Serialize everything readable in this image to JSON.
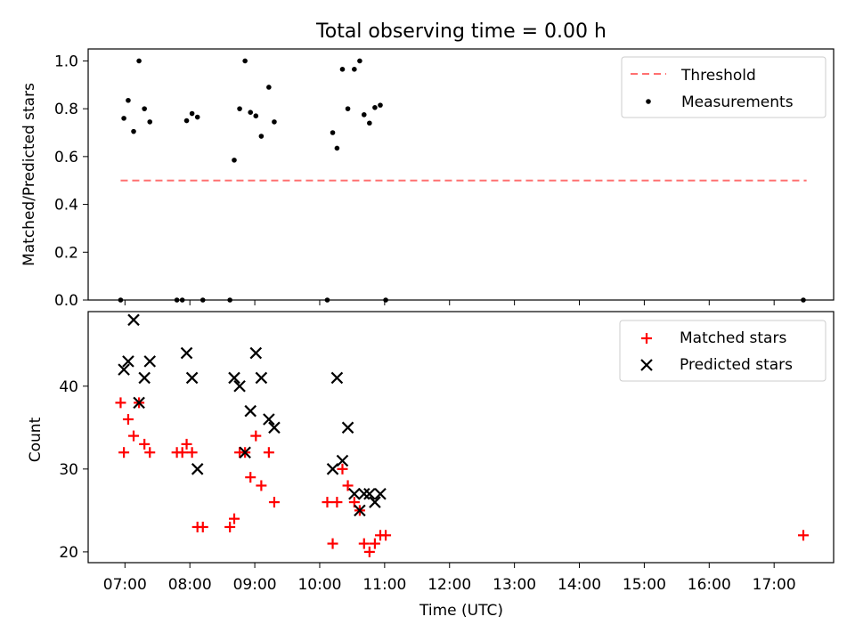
{
  "chart_data": [
    {
      "type": "scatter",
      "title": "Total observing time = 0.00 h",
      "xlabel": "",
      "ylabel": "Matched/Predicted stars",
      "xlim": [
        "06:26",
        "17:55"
      ],
      "ylim": [
        0,
        1.05
      ],
      "yticks": [
        "0.0",
        "0.2",
        "0.4",
        "0.6",
        "0.8",
        "1.0"
      ],
      "legend_position": "upper right",
      "threshold": {
        "name": "Threshold",
        "color": "#ff7070",
        "style": "dashed",
        "y": 0.5,
        "x": [
          "06:56",
          "17:30"
        ]
      },
      "measurements": {
        "name": "Measurements",
        "color": "#000000",
        "points": [
          {
            "x": "06:56",
            "y": 0.0
          },
          {
            "x": "06:59",
            "y": 0.76
          },
          {
            "x": "07:03",
            "y": 0.835
          },
          {
            "x": "07:08",
            "y": 0.705
          },
          {
            "x": "07:13",
            "y": 1.0
          },
          {
            "x": "07:18",
            "y": 0.8
          },
          {
            "x": "07:23",
            "y": 0.745
          },
          {
            "x": "07:48",
            "y": 0.0
          },
          {
            "x": "07:53",
            "y": 0.0
          },
          {
            "x": "07:57",
            "y": 0.75
          },
          {
            "x": "08:02",
            "y": 0.78
          },
          {
            "x": "08:07",
            "y": 0.765
          },
          {
            "x": "08:12",
            "y": 0.0
          },
          {
            "x": "08:37",
            "y": 0.0
          },
          {
            "x": "08:41",
            "y": 0.585
          },
          {
            "x": "08:46",
            "y": 0.8
          },
          {
            "x": "08:51",
            "y": 1.0
          },
          {
            "x": "08:56",
            "y": 0.785
          },
          {
            "x": "09:01",
            "y": 0.77
          },
          {
            "x": "09:06",
            "y": 0.685
          },
          {
            "x": "09:13",
            "y": 0.89
          },
          {
            "x": "09:18",
            "y": 0.745
          },
          {
            "x": "10:07",
            "y": 0.0
          },
          {
            "x": "10:12",
            "y": 0.7
          },
          {
            "x": "10:16",
            "y": 0.635
          },
          {
            "x": "10:21",
            "y": 0.965
          },
          {
            "x": "10:26",
            "y": 0.8
          },
          {
            "x": "10:32",
            "y": 0.965
          },
          {
            "x": "10:37",
            "y": 1.0
          },
          {
            "x": "10:41",
            "y": 0.775
          },
          {
            "x": "10:46",
            "y": 0.74
          },
          {
            "x": "10:51",
            "y": 0.805
          },
          {
            "x": "10:56",
            "y": 0.815
          },
          {
            "x": "11:01",
            "y": 0.0
          },
          {
            "x": "17:27",
            "y": 0.0
          }
        ]
      }
    },
    {
      "type": "scatter",
      "xlabel": "Time (UTC)",
      "ylabel": "Count",
      "xlim": [
        "06:26",
        "17:55"
      ],
      "ylim": [
        18.7,
        49
      ],
      "xticks": [
        "07:00",
        "08:00",
        "09:00",
        "10:00",
        "11:00",
        "12:00",
        "13:00",
        "14:00",
        "15:00",
        "16:00",
        "17:00"
      ],
      "yticks": [
        "20",
        "30",
        "40"
      ],
      "legend_position": "upper right",
      "series": [
        {
          "name": "Matched stars",
          "marker": "+",
          "color": "#ff0000",
          "points": [
            {
              "x": "06:56",
              "y": 38
            },
            {
              "x": "06:59",
              "y": 32
            },
            {
              "x": "07:03",
              "y": 36
            },
            {
              "x": "07:08",
              "y": 34
            },
            {
              "x": "07:13",
              "y": 38
            },
            {
              "x": "07:18",
              "y": 33
            },
            {
              "x": "07:23",
              "y": 32
            },
            {
              "x": "07:48",
              "y": 32
            },
            {
              "x": "07:53",
              "y": 32
            },
            {
              "x": "07:57",
              "y": 33
            },
            {
              "x": "08:02",
              "y": 32
            },
            {
              "x": "08:07",
              "y": 23
            },
            {
              "x": "08:12",
              "y": 23
            },
            {
              "x": "08:37",
              "y": 23
            },
            {
              "x": "08:41",
              "y": 24
            },
            {
              "x": "08:46",
              "y": 32
            },
            {
              "x": "08:51",
              "y": 32
            },
            {
              "x": "08:56",
              "y": 29
            },
            {
              "x": "09:01",
              "y": 34
            },
            {
              "x": "09:06",
              "y": 28
            },
            {
              "x": "09:13",
              "y": 32
            },
            {
              "x": "09:18",
              "y": 26
            },
            {
              "x": "10:07",
              "y": 26
            },
            {
              "x": "10:12",
              "y": 21
            },
            {
              "x": "10:16",
              "y": 26
            },
            {
              "x": "10:21",
              "y": 30
            },
            {
              "x": "10:26",
              "y": 28
            },
            {
              "x": "10:32",
              "y": 26
            },
            {
              "x": "10:37",
              "y": 25
            },
            {
              "x": "10:41",
              "y": 21
            },
            {
              "x": "10:46",
              "y": 20
            },
            {
              "x": "10:51",
              "y": 21
            },
            {
              "x": "10:56",
              "y": 22
            },
            {
              "x": "11:01",
              "y": 22
            },
            {
              "x": "17:27",
              "y": 22
            }
          ]
        },
        {
          "name": "Predicted stars",
          "marker": "x",
          "color": "#000000",
          "points": [
            {
              "x": "06:59",
              "y": 42
            },
            {
              "x": "07:03",
              "y": 43
            },
            {
              "x": "07:08",
              "y": 48
            },
            {
              "x": "07:13",
              "y": 38
            },
            {
              "x": "07:18",
              "y": 41
            },
            {
              "x": "07:23",
              "y": 43
            },
            {
              "x": "07:57",
              "y": 44
            },
            {
              "x": "08:02",
              "y": 41
            },
            {
              "x": "08:07",
              "y": 30
            },
            {
              "x": "08:41",
              "y": 41
            },
            {
              "x": "08:46",
              "y": 40
            },
            {
              "x": "08:51",
              "y": 32
            },
            {
              "x": "08:56",
              "y": 37
            },
            {
              "x": "09:01",
              "y": 44
            },
            {
              "x": "09:06",
              "y": 41
            },
            {
              "x": "09:13",
              "y": 36
            },
            {
              "x": "09:18",
              "y": 35
            },
            {
              "x": "10:12",
              "y": 30
            },
            {
              "x": "10:16",
              "y": 41
            },
            {
              "x": "10:21",
              "y": 31
            },
            {
              "x": "10:26",
              "y": 35
            },
            {
              "x": "10:32",
              "y": 27
            },
            {
              "x": "10:37",
              "y": 25
            },
            {
              "x": "10:41",
              "y": 27
            },
            {
              "x": "10:46",
              "y": 27
            },
            {
              "x": "10:51",
              "y": 26
            },
            {
              "x": "10:56",
              "y": 27
            }
          ]
        }
      ]
    }
  ]
}
